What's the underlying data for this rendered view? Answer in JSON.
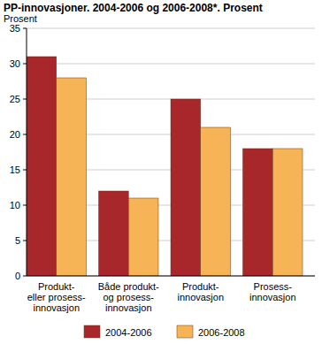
{
  "chart_data": {
    "type": "bar",
    "title": "PP-innovasjoner. 2004-2006 og 2006-2008*. Prosent",
    "y_label": "Prosent",
    "categories": [
      "Produkt-\neller prosess-\ninnovasjon",
      "Både produkt-\nog prosess-\ninnovasjon",
      "Produkt-\ninnovasjon",
      "Prosess-\ninnovasjon"
    ],
    "series": [
      {
        "name": "2004-2006",
        "color": "#a8272b",
        "values": [
          31,
          12,
          25,
          18
        ]
      },
      {
        "name": "2006-2008",
        "color": "#f6b456",
        "values": [
          28,
          11,
          21,
          18
        ]
      }
    ],
    "ylim": [
      0,
      35
    ],
    "yticks": [
      0,
      5,
      10,
      15,
      20,
      25,
      30,
      35
    ],
    "grid": true,
    "legend": "bottom"
  }
}
